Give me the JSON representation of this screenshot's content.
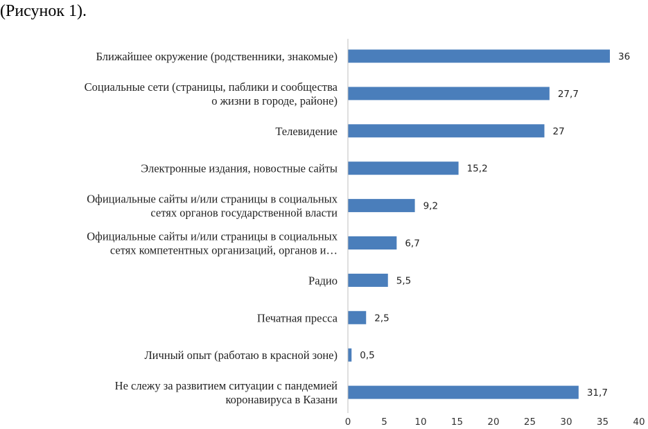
{
  "caption": "(Рисунок 1).",
  "chart_data": {
    "type": "bar",
    "orientation": "horizontal",
    "title": "",
    "xlabel": "",
    "ylabel": "",
    "categories": [
      [
        "Ближайшее окружение (родственники, знакомые)"
      ],
      [
        "Социальные сети (страницы, паблики и сообщества",
        "о жизни в городе, районе)"
      ],
      [
        "Телевидение"
      ],
      [
        "Электронные издания, новостные сайты"
      ],
      [
        "Официальные сайты и/или страницы в социальных",
        "сетях органов государственной власти"
      ],
      [
        "Официальные сайты и/или страницы в социальных",
        "сетях компетентных организаций, органов и…"
      ],
      [
        "Радио"
      ],
      [
        "Печатная пресса"
      ],
      [
        "Личный опыт (работаю в красной зоне)"
      ],
      [
        "Не слежу за развитием ситуации с пандемией",
        "коронавируса в Казани"
      ]
    ],
    "values": [
      36,
      27.7,
      27,
      15.2,
      9.2,
      6.7,
      5.5,
      2.5,
      0.5,
      31.7
    ],
    "data_labels": [
      "36",
      "27,7",
      "27",
      "15,2",
      "9,2",
      "6,7",
      "5,5",
      "2,5",
      "0,5",
      "31,7"
    ],
    "xlim": [
      0,
      40
    ],
    "xticks": [
      0,
      5,
      10,
      15,
      20,
      25,
      30,
      35,
      40
    ],
    "grid": false,
    "bar_color": "#4a7ebb"
  }
}
